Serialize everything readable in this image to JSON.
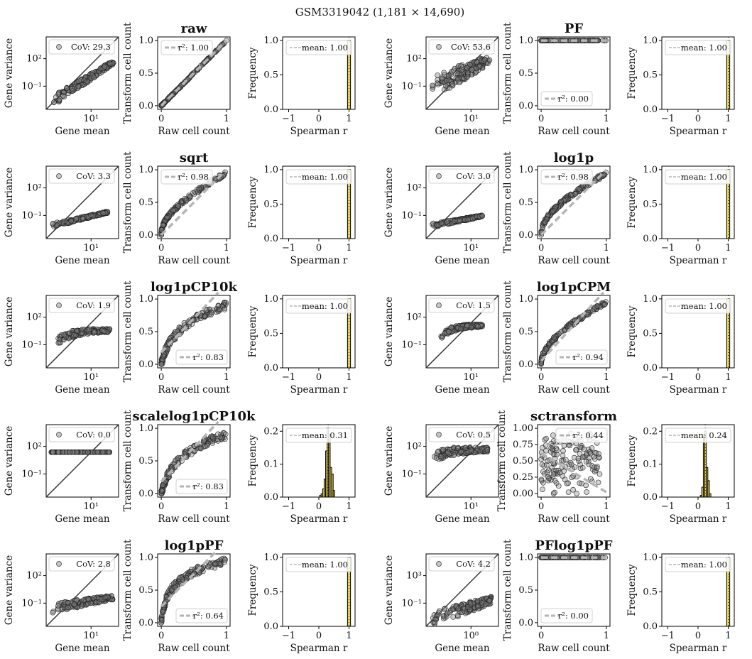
{
  "suptitle": "GSM3319042 (1,181 × 14,690)",
  "labels": {
    "gene_mean": "Gene mean",
    "gene_variance": "Gene variance",
    "raw_cell_count": "Raw cell count",
    "transform_cell_count": "Transform cell count",
    "spearman_r": "Spearman r",
    "frequency": "Frequency"
  },
  "colors": {
    "hist_fill": "#e8d35a",
    "points": "#7f7f7f",
    "fit_line": "#b5b5b5",
    "diag_line": "#333333"
  },
  "chart_data": [
    {
      "transform": "raw",
      "meanvar": {
        "type": "scatter",
        "cov": "CoV: 29.3",
        "xtick": "10¹",
        "ytick_top": "10²",
        "ytick_bot": "10⁻¹",
        "shape": "power",
        "slope": 2.0,
        "xmin": 0.1,
        "xmax": 0.93,
        "yoff": 0.12,
        "spread": 0.05
      },
      "cellcount": {
        "type": "scatter",
        "r2": "r²: 1.00",
        "legend_loc": "upper left",
        "fit_slope": 1.0,
        "fit_intercept": 0.0,
        "shape": "linear",
        "xticks": [
          "0",
          "1"
        ],
        "yticks": [
          "0.0",
          "0.5",
          "1.0"
        ]
      },
      "hist": {
        "type": "bar",
        "mean": "mean: 1.00",
        "mean_value": 1.0,
        "ylim": [
          0,
          1.05
        ],
        "yticks": [
          "0.0",
          "0.5",
          "1.0"
        ],
        "xticks": [
          "−1",
          "0",
          "1"
        ],
        "bins": [
          {
            "x": 1.0,
            "h": 1.0
          }
        ]
      }
    },
    {
      "transform": "PF",
      "meanvar": {
        "type": "scatter",
        "cov": "CoV: 53.6",
        "xtick": "10¹",
        "ytick_top": "10²",
        "ytick_bot": "10⁻¹",
        "shape": "power",
        "slope": 1.6,
        "xmin": 0.06,
        "xmax": 0.88,
        "yoff": 0.28,
        "spread": 0.12
      },
      "cellcount": {
        "type": "scatter",
        "r2": "r²: 0.00",
        "legend_loc": "lower left",
        "fit_slope": 0.0,
        "fit_intercept": 1.0,
        "shape": "flat",
        "xticks": [
          "0",
          "1"
        ],
        "yticks": [
          "0.0",
          "0.5",
          "1.0"
        ]
      },
      "hist": {
        "type": "bar",
        "mean": "mean: 1.00",
        "mean_value": 1.0,
        "ylim": [
          0,
          1.05
        ],
        "yticks": [
          "0.0",
          "0.5",
          "1.0"
        ],
        "xticks": [
          "−1",
          "0",
          "1"
        ],
        "bins": [
          {
            "x": 1.0,
            "h": 1.0
          }
        ]
      }
    },
    {
      "transform": "sqrt",
      "meanvar": {
        "type": "scatter",
        "cov": "CoV: 3.3",
        "xtick": "10¹",
        "ytick_top": "10²",
        "ytick_bot": "10⁻¹",
        "shape": "power",
        "slope": 0.75,
        "xmin": 0.08,
        "xmax": 0.85,
        "yoff": 0.18,
        "spread": 0.02
      },
      "cellcount": {
        "type": "scatter",
        "r2": "r²: 0.98",
        "legend_loc": "upper left",
        "fit_slope": 1.0,
        "fit_intercept": 0.0,
        "shape": "sqrt",
        "xticks": [
          "0",
          "1"
        ],
        "yticks": [
          "0.0",
          "0.5",
          "1.0"
        ]
      },
      "hist": {
        "type": "bar",
        "mean": "mean: 1.00",
        "mean_value": 1.0,
        "ylim": [
          0,
          1.05
        ],
        "yticks": [
          "0.0",
          "0.5",
          "1.0"
        ],
        "xticks": [
          "−1",
          "0",
          "1"
        ],
        "bins": [
          {
            "x": 1.0,
            "h": 1.0
          }
        ]
      }
    },
    {
      "transform": "log1p",
      "meanvar": {
        "type": "scatter",
        "cov": "CoV: 3.0",
        "xtick": "10¹",
        "ytick_top": "10²",
        "ytick_bot": "10⁻¹",
        "shape": "power",
        "slope": 0.6,
        "xmin": 0.08,
        "xmax": 0.78,
        "yoff": 0.18,
        "spread": 0.02
      },
      "cellcount": {
        "type": "scatter",
        "r2": "r²: 0.98",
        "legend_loc": "upper left",
        "fit_slope": 1.0,
        "fit_intercept": 0.0,
        "shape": "sqrt",
        "xticks": [
          "0",
          "1"
        ],
        "yticks": [
          "0.0",
          "0.5",
          "1.0"
        ]
      },
      "hist": {
        "type": "bar",
        "mean": "mean: 1.00",
        "mean_value": 1.0,
        "ylim": [
          0,
          1.05
        ],
        "yticks": [
          "0.0",
          "0.5",
          "1.0"
        ],
        "xticks": [
          "−1",
          "0",
          "1"
        ],
        "bins": [
          {
            "x": 1.0,
            "h": 1.0
          }
        ]
      }
    },
    {
      "transform": "log1pCP10k",
      "meanvar": {
        "type": "scatter",
        "cov": "CoV: 1.9",
        "xtick": "10¹",
        "ytick_top": "10²",
        "ytick_bot": "10⁻¹",
        "shape": "sat",
        "slope": 0.4,
        "xmin": 0.08,
        "xmax": 0.88,
        "yoff": 0.3,
        "spread": 0.04
      },
      "cellcount": {
        "type": "scatter",
        "r2": "r²: 0.83",
        "legend_loc": "lower right",
        "fit_slope": 1.05,
        "fit_intercept": 0.18,
        "shape": "log",
        "xticks": [
          "0",
          "1"
        ],
        "yticks": [
          "0.0",
          "0.5",
          "1.0"
        ]
      },
      "hist": {
        "type": "bar",
        "mean": "mean: 1.00",
        "mean_value": 1.0,
        "ylim": [
          0,
          1.05
        ],
        "yticks": [
          "0.0",
          "0.5",
          "1.0"
        ],
        "xticks": [
          "−1",
          "0",
          "1"
        ],
        "bins": [
          {
            "x": 1.0,
            "h": 1.0
          }
        ]
      }
    },
    {
      "transform": "log1pCPM",
      "meanvar": {
        "type": "scatter",
        "cov": "CoV: 1.5",
        "xtick": "10¹",
        "ytick_top": "10²",
        "ytick_bot": "10⁻¹",
        "shape": "sat",
        "slope": 0.3,
        "xmin": 0.2,
        "xmax": 0.78,
        "yoff": 0.42,
        "spread": 0.03
      },
      "cellcount": {
        "type": "scatter",
        "r2": "r²: 0.94",
        "legend_loc": "lower right",
        "fit_slope": 1.1,
        "fit_intercept": 0.05,
        "shape": "sqrt",
        "xticks": [
          "0",
          "1"
        ],
        "yticks": [
          "0.0",
          "0.5",
          "1.0"
        ]
      },
      "hist": {
        "type": "bar",
        "mean": "mean: 1.00",
        "mean_value": 1.0,
        "ylim": [
          0,
          1.05
        ],
        "yticks": [
          "0.0",
          "0.5",
          "1.0"
        ],
        "xticks": [
          "−1",
          "0",
          "1"
        ],
        "bins": [
          {
            "x": 1.0,
            "h": 1.0
          }
        ]
      }
    },
    {
      "transform": "scalelog1pCP10k",
      "meanvar": {
        "type": "scatter",
        "cov": "CoV: 0.0",
        "xtick": "10¹",
        "ytick_top": "10²",
        "ytick_bot": "10⁻¹",
        "shape": "flat",
        "slope": 0.0,
        "xmin": 0.06,
        "xmax": 0.88,
        "yoff": 0.62,
        "spread": 0.0
      },
      "cellcount": {
        "type": "scatter",
        "r2": "r²: 0.83",
        "legend_loc": "lower right",
        "fit_slope": 1.05,
        "fit_intercept": 0.18,
        "shape": "log",
        "xticks": [
          "0",
          "1"
        ],
        "yticks": [
          "0.0",
          "0.5",
          "1.0"
        ]
      },
      "hist": {
        "type": "bar",
        "mean": "mean: 0.31",
        "mean_value": 0.31,
        "ylim": [
          0,
          0.22
        ],
        "yticks": [
          "0.0",
          "0.1",
          "0.2"
        ],
        "xticks": [
          "−1",
          "0",
          "1"
        ],
        "bins": [
          {
            "x": 0.05,
            "h": 0.005
          },
          {
            "x": 0.1,
            "h": 0.01
          },
          {
            "x": 0.15,
            "h": 0.025
          },
          {
            "x": 0.2,
            "h": 0.055
          },
          {
            "x": 0.25,
            "h": 0.14
          },
          {
            "x": 0.3,
            "h": 0.21
          },
          {
            "x": 0.35,
            "h": 0.19
          },
          {
            "x": 0.4,
            "h": 0.09
          },
          {
            "x": 0.45,
            "h": 0.07
          },
          {
            "x": 0.5,
            "h": 0.02
          }
        ]
      }
    },
    {
      "transform": "sctransform",
      "meanvar": {
        "type": "scatter",
        "cov": "CoV: 0.5",
        "xtick": "10¹",
        "ytick_top": "10²",
        "ytick_bot": "10⁻¹",
        "shape": "sat",
        "slope": 0.25,
        "xmin": 0.08,
        "xmax": 0.85,
        "yoff": 0.52,
        "spread": 0.05
      },
      "cellcount": {
        "type": "scatter",
        "r2": "r²: 0.44",
        "legend_loc": "upper right",
        "fit_slope": -0.6,
        "fit_intercept": 0.62,
        "shape": "cloud",
        "xticks": [
          "0",
          "1"
        ],
        "yticks": [
          "0.00",
          "0.25",
          "0.50",
          "0.75",
          "1.00"
        ]
      },
      "hist": {
        "type": "bar",
        "mean": "mean: 0.24",
        "mean_value": 0.24,
        "ylim": [
          0,
          0.22
        ],
        "yticks": [
          "0.0",
          "0.1",
          "0.2"
        ],
        "xticks": [
          "−1",
          "0",
          "1"
        ],
        "bins": [
          {
            "x": 0.1,
            "h": 0.005
          },
          {
            "x": 0.15,
            "h": 0.03
          },
          {
            "x": 0.2,
            "h": 0.19
          },
          {
            "x": 0.25,
            "h": 0.2
          },
          {
            "x": 0.3,
            "h": 0.09
          },
          {
            "x": 0.35,
            "h": 0.05
          },
          {
            "x": 0.4,
            "h": 0.01
          }
        ]
      }
    },
    {
      "transform": "log1pPF",
      "meanvar": {
        "type": "scatter",
        "cov": "CoV: 2.8",
        "xtick": "10¹",
        "ytick_top": "10²",
        "ytick_bot": "10⁻¹",
        "shape": "power",
        "slope": 0.55,
        "xmin": 0.07,
        "xmax": 0.92,
        "yoff": 0.25,
        "spread": 0.05
      },
      "cellcount": {
        "type": "scatter",
        "r2": "r²: 0.64",
        "legend_loc": "lower right",
        "fit_slope": 1.0,
        "fit_intercept": 0.25,
        "shape": "steeplog",
        "xticks": [
          "0",
          "1"
        ],
        "yticks": [
          "0.0",
          "0.5",
          "1.0"
        ]
      },
      "hist": {
        "type": "bar",
        "mean": "mean: 1.00",
        "mean_value": 1.0,
        "ylim": [
          0,
          1.05
        ],
        "yticks": [
          "0.0",
          "0.5",
          "1.0"
        ],
        "xticks": [
          "−1",
          "0",
          "1"
        ],
        "bins": [
          {
            "x": 1.0,
            "h": 1.0
          }
        ]
      }
    },
    {
      "transform": "PFlog1pPF",
      "meanvar": {
        "type": "scatter",
        "cov": "CoV: 4.2",
        "xtick": "10⁰",
        "ytick_top": "10³",
        "ytick_bot": "10⁻¹",
        "shape": "power",
        "slope": 1.0,
        "xmin": 0.08,
        "xmax": 0.9,
        "yoff": 0.1,
        "spread": 0.08
      },
      "cellcount": {
        "type": "scatter",
        "r2": "r²: 0.00",
        "legend_loc": "lower left",
        "fit_slope": 0.0,
        "fit_intercept": 1.0,
        "shape": "flat",
        "xticks": [
          "0",
          "1"
        ],
        "yticks": [
          "0.0",
          "0.5",
          "1.0"
        ]
      },
      "hist": {
        "type": "bar",
        "mean": "mean: 1.00",
        "mean_value": 1.0,
        "ylim": [
          0,
          1.05
        ],
        "yticks": [
          "0.0",
          "0.5",
          "1.0"
        ],
        "xticks": [
          "−1",
          "0",
          "1"
        ],
        "bins": [
          {
            "x": 1.0,
            "h": 1.0
          }
        ]
      }
    }
  ]
}
